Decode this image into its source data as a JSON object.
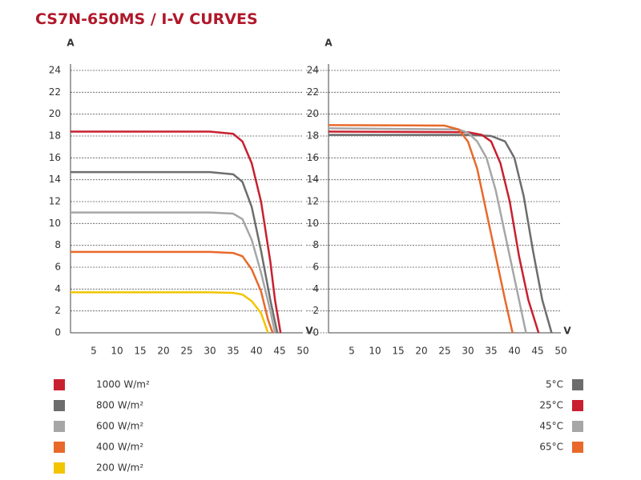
{
  "title": "CS7N-650MS / I-V CURVES",
  "chart_data": [
    {
      "type": "line",
      "xlabel": "V",
      "ylabel": "A",
      "xlim": [
        0,
        50
      ],
      "xticks": [
        5,
        10,
        15,
        20,
        25,
        30,
        35,
        40,
        45,
        50
      ],
      "ylim": [
        0,
        24
      ],
      "yticks": [
        0,
        2,
        4,
        6,
        8,
        10,
        12,
        14,
        16,
        18,
        20,
        22,
        24
      ],
      "grid": true,
      "legend": "bottom-left",
      "series": [
        {
          "name": "1000 W/m²",
          "color": "#c8202f",
          "x": [
            0,
            30,
            35,
            37,
            39,
            41,
            43,
            44,
            45.2
          ],
          "values": [
            18.4,
            18.4,
            18.2,
            17.5,
            15.5,
            12,
            6.5,
            3,
            0
          ]
        },
        {
          "name": "800 W/m²",
          "color": "#6d6d6d",
          "x": [
            0,
            30,
            35,
            37,
            39,
            41,
            43,
            44.5
          ],
          "values": [
            14.7,
            14.7,
            14.5,
            13.8,
            11.5,
            7.5,
            3,
            0
          ]
        },
        {
          "name": "600 W/m²",
          "color": "#a6a6a6",
          "x": [
            0,
            30,
            35,
            37,
            39,
            41,
            43,
            44
          ],
          "values": [
            11,
            11,
            10.9,
            10.4,
            8.5,
            5.5,
            2,
            0
          ]
        },
        {
          "name": "400 W/m²",
          "color": "#e8692a",
          "x": [
            0,
            30,
            35,
            37,
            39,
            41,
            42.5,
            43.5
          ],
          "values": [
            7.4,
            7.4,
            7.3,
            7,
            5.8,
            3.8,
            1.2,
            0
          ]
        },
        {
          "name": "200 W/m²",
          "color": "#f2c500",
          "x": [
            0,
            30,
            35,
            37,
            39,
            41,
            42.5
          ],
          "values": [
            3.7,
            3.7,
            3.65,
            3.5,
            2.9,
            1.8,
            0
          ]
        }
      ]
    },
    {
      "type": "line",
      "xlabel": "V",
      "ylabel": "A",
      "xlim": [
        0,
        50
      ],
      "xticks": [
        5,
        10,
        15,
        20,
        25,
        30,
        35,
        40,
        45,
        50
      ],
      "ylim": [
        0,
        24
      ],
      "yticks": [
        0,
        2,
        4,
        6,
        8,
        10,
        12,
        14,
        16,
        18,
        20,
        22,
        24
      ],
      "grid": true,
      "legend": "bottom-right",
      "series": [
        {
          "name": "5°C",
          "color": "#6d6d6d",
          "x": [
            0,
            30,
            35,
            38,
            40,
            42,
            44,
            46,
            48
          ],
          "values": [
            18.1,
            18.1,
            18,
            17.5,
            16,
            12.5,
            7.5,
            3,
            0
          ]
        },
        {
          "name": "25°C",
          "color": "#c8202f",
          "x": [
            0,
            30,
            33,
            35,
            37,
            39,
            41,
            43,
            45.2
          ],
          "values": [
            18.4,
            18.35,
            18.1,
            17.5,
            15.5,
            12,
            7,
            3,
            0
          ]
        },
        {
          "name": "45°C",
          "color": "#a6a6a6",
          "x": [
            0,
            28,
            30,
            32,
            34,
            36,
            38,
            40,
            42.5
          ],
          "values": [
            18.7,
            18.6,
            18.3,
            17.5,
            16,
            13,
            9,
            5,
            0
          ]
        },
        {
          "name": "65°C",
          "color": "#e8692a",
          "x": [
            0,
            25,
            28,
            30,
            32,
            34,
            36,
            38,
            39.6
          ],
          "values": [
            19,
            18.95,
            18.6,
            17.5,
            15,
            11,
            7,
            3,
            0
          ]
        }
      ]
    }
  ]
}
